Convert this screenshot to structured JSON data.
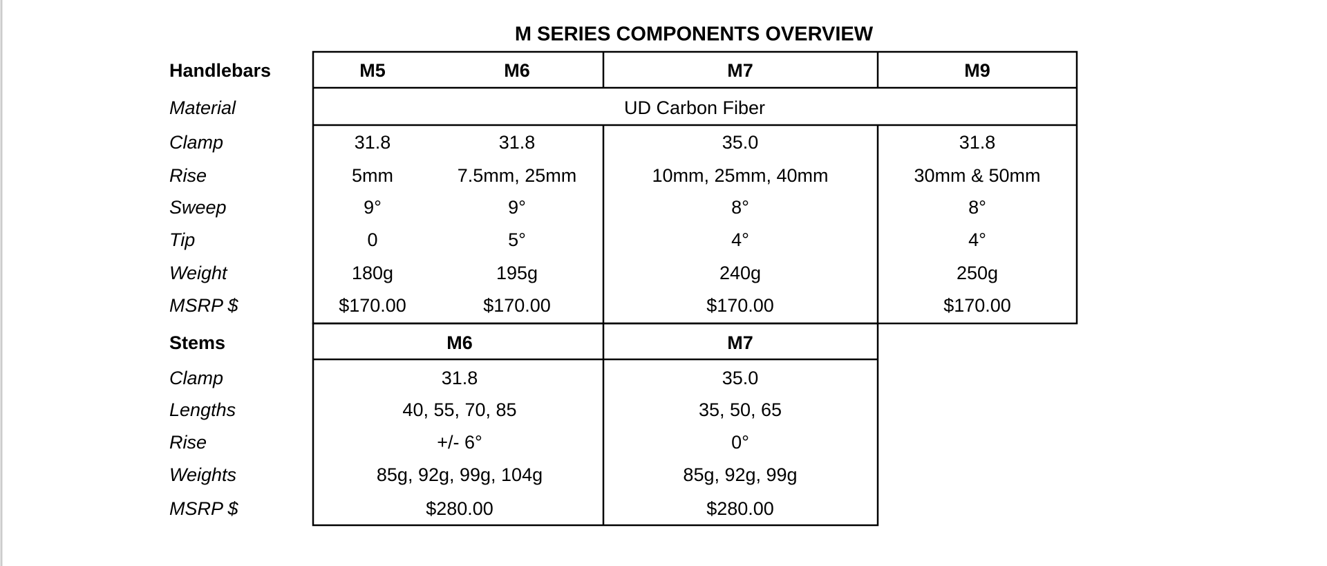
{
  "title": "M SERIES COMPONENTS OVERVIEW",
  "handlebars": {
    "header": "Handlebars",
    "models": [
      "M5",
      "M6",
      "M7",
      "M9"
    ],
    "material": {
      "label": "Material",
      "value": "UD Carbon Fiber"
    },
    "rows": [
      {
        "label": "Clamp",
        "values": [
          "31.8",
          "31.8",
          "35.0",
          "31.8"
        ]
      },
      {
        "label": "Rise",
        "values": [
          "5mm",
          "7.5mm, 25mm",
          "10mm, 25mm, 40mm",
          "30mm & 50mm"
        ]
      },
      {
        "label": "Sweep",
        "values": [
          "9°",
          "9°",
          "8°",
          "8°"
        ]
      },
      {
        "label": "Tip",
        "values": [
          "0",
          "5°",
          "4°",
          "4°"
        ]
      },
      {
        "label": "Weight",
        "values": [
          "180g",
          "195g",
          "240g",
          "250g"
        ]
      },
      {
        "label": "MSRP $",
        "values": [
          "$170.00",
          "$170.00",
          "$170.00",
          "$170.00"
        ]
      }
    ]
  },
  "stems": {
    "header": "Stems",
    "models": [
      "M6",
      "M7"
    ],
    "rows": [
      {
        "label": "Clamp",
        "values": [
          "31.8",
          "35.0"
        ]
      },
      {
        "label": "Lengths",
        "values": [
          "40, 55, 70, 85",
          "35, 50, 65"
        ]
      },
      {
        "label": "Rise",
        "values": [
          "+/- 6°",
          "0°"
        ]
      },
      {
        "label": "Weights",
        "values": [
          "85g, 92g, 99g, 104g",
          "85g, 92g, 99g"
        ]
      },
      {
        "label": "MSRP $",
        "values": [
          "$280.00",
          "$280.00"
        ]
      }
    ]
  }
}
